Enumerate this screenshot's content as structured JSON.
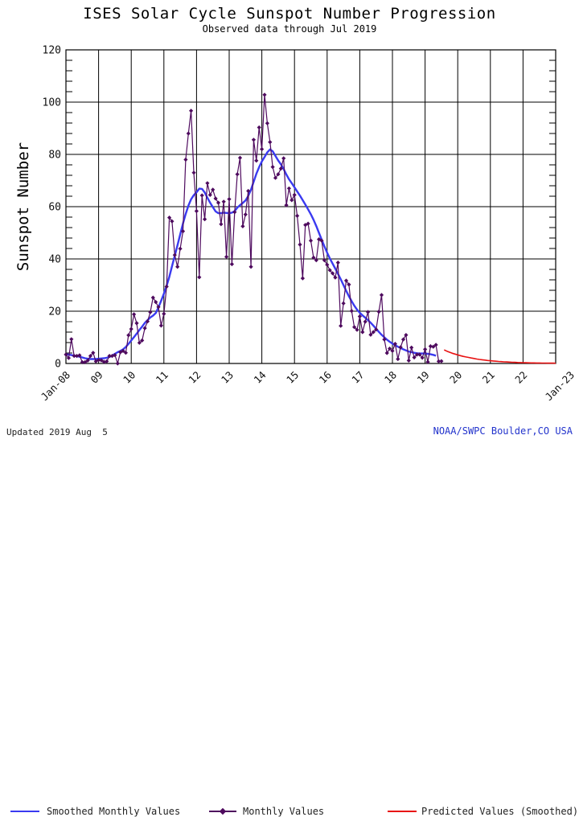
{
  "page": {
    "title": "ISES Solar Cycle Sunspot Number Progression",
    "subtitle": "Observed data through Jul 2019",
    "footer_left": "Updated 2019 Aug  5",
    "footer_right": "NOAA/SWPC Boulder,CO USA"
  },
  "colors": {
    "smoothed": "#3a3af0",
    "monthly": "#4e0a5e",
    "predicted": "#e81212",
    "grid": "#000000",
    "text": "#111111",
    "footer_right_text": "#2233cc"
  },
  "chart_data": {
    "type": "line",
    "title": "ISES Solar Cycle Sunspot Number Progression",
    "subtitle": "Observed data through Jul 2019",
    "xlabel": "",
    "ylabel": "Sunspot Number",
    "grid": true,
    "legend_position": "bottom",
    "ylim": [
      0,
      120
    ],
    "y_ticks": [
      0,
      20,
      40,
      60,
      80,
      100,
      120
    ],
    "y_minor_step": 4,
    "x_months_total": 180,
    "x_tick_labels": [
      "Jan-08",
      "09",
      "10",
      "11",
      "12",
      "13",
      "14",
      "15",
      "16",
      "17",
      "18",
      "19",
      "20",
      "21",
      "22",
      "Jan-23"
    ],
    "x_range_note": "x axis spans Jan 2008 to Jan 2023, one gridline per year",
    "series": [
      {
        "name": "Smoothed Monthly Values",
        "type": "line",
        "color_key": "smoothed",
        "start_month": 0,
        "values": [
          3.5,
          3.4,
          3.2,
          3.0,
          2.8,
          2.6,
          2.3,
          2.0,
          1.8,
          1.7,
          1.7,
          1.7,
          1.8,
          1.9,
          2.0,
          2.2,
          2.5,
          3.0,
          3.7,
          4.3,
          4.8,
          5.4,
          6.3,
          7.5,
          8.8,
          10.1,
          11.4,
          12.8,
          14.1,
          15.5,
          16.6,
          17.6,
          18.3,
          19.3,
          21.4,
          24.0,
          26.7,
          29.7,
          33.2,
          37.2,
          41.2,
          45.2,
          49.4,
          53.5,
          57.2,
          60.4,
          62.8,
          64.4,
          65.5,
          66.9,
          66.8,
          65.4,
          63.4,
          61.5,
          59.8,
          58.2,
          57.5,
          57.5,
          57.7,
          57.6,
          57.5,
          57.7,
          58.3,
          59.6,
          60.6,
          61.4,
          62.4,
          64.1,
          66.5,
          69.5,
          72.6,
          75.1,
          77.3,
          79.0,
          80.8,
          81.9,
          81.2,
          79.4,
          77.7,
          76.2,
          74.4,
          72.3,
          70.5,
          69.0,
          67.4,
          65.8,
          64.2,
          62.5,
          60.8,
          59.0,
          57.1,
          55.0,
          52.6,
          50.0,
          47.4,
          44.8,
          42.4,
          40.2,
          38.2,
          36.3,
          34.3,
          32.2,
          30.0,
          27.8,
          25.7,
          23.8,
          22.1,
          20.6,
          19.4,
          18.4,
          17.5,
          16.6,
          15.6,
          14.5,
          13.3,
          12.1,
          11.0,
          10.0,
          9.1,
          8.3,
          7.6,
          7.0,
          6.4,
          5.9,
          5.4,
          5.0,
          4.6,
          4.3,
          4.1,
          3.9,
          3.8,
          3.8,
          3.8,
          3.7,
          3.5,
          3.3,
          3.0
        ]
      },
      {
        "name": "Monthly Values",
        "type": "line+diamond",
        "color_key": "monthly",
        "start_month": 0,
        "values": [
          3.4,
          2.1,
          9.3,
          2.9,
          2.9,
          3.1,
          0.5,
          0.5,
          1.1,
          2.9,
          4.1,
          0.8,
          1.3,
          1.2,
          0.6,
          0.8,
          2.9,
          2.9,
          3.2,
          0.0,
          4.3,
          4.8,
          4.1,
          10.8,
          13.2,
          18.8,
          15.4,
          7.9,
          8.8,
          13.5,
          16.1,
          19.6,
          25.2,
          23.5,
          21.6,
          14.5,
          19.0,
          29.4,
          55.8,
          54.4,
          41.5,
          37.0,
          43.9,
          50.6,
          78.0,
          88.0,
          96.7,
          73.0,
          58.3,
          33.0,
          64.3,
          55.2,
          69.0,
          64.5,
          66.5,
          63.1,
          61.5,
          53.3,
          61.9,
          40.8,
          62.9,
          38.0,
          57.9,
          72.4,
          78.7,
          52.5,
          57.0,
          66.0,
          37.0,
          85.6,
          77.6,
          90.3,
          82.0,
          102.8,
          91.9,
          84.7,
          75.2,
          71.0,
          72.4,
          74.6,
          78.5,
          60.6,
          67.0,
          62.5,
          64.5,
          56.5,
          45.5,
          32.6,
          53.0,
          53.5,
          47.0,
          40.5,
          39.5,
          47.5,
          47.0,
          39.5,
          37.8,
          35.7,
          34.5,
          32.9,
          38.6,
          14.4,
          23.0,
          31.7,
          30.2,
          20.1,
          13.9,
          12.9,
          18.0,
          12.0,
          16.0,
          19.7,
          11.0,
          12.0,
          13.0,
          19.8,
          26.2,
          9.2,
          4.0,
          5.7,
          4.8,
          7.5,
          1.7,
          6.2,
          9.2,
          10.9,
          1.1,
          6.1,
          2.3,
          3.4,
          3.4,
          2.2,
          5.4,
          0.6,
          6.6,
          6.4,
          7.1,
          0.8,
          0.9
        ]
      },
      {
        "name": "Predicted Values (Smoothed)",
        "type": "line",
        "color_key": "predicted",
        "start_month": 139,
        "values": [
          5.2,
          4.7,
          4.3,
          3.9,
          3.6,
          3.3,
          3.0,
          2.7,
          2.5,
          2.3,
          2.1,
          1.9,
          1.7,
          1.55,
          1.4,
          1.3,
          1.15,
          1.05,
          0.95,
          0.85,
          0.78,
          0.7,
          0.63,
          0.57,
          0.51,
          0.46,
          0.42,
          0.38,
          0.34,
          0.31,
          0.28,
          0.25,
          0.23,
          0.21,
          0.19,
          0.17,
          0.15,
          0.14,
          0.13,
          0.12,
          0.11,
          0.1
        ]
      }
    ]
  }
}
